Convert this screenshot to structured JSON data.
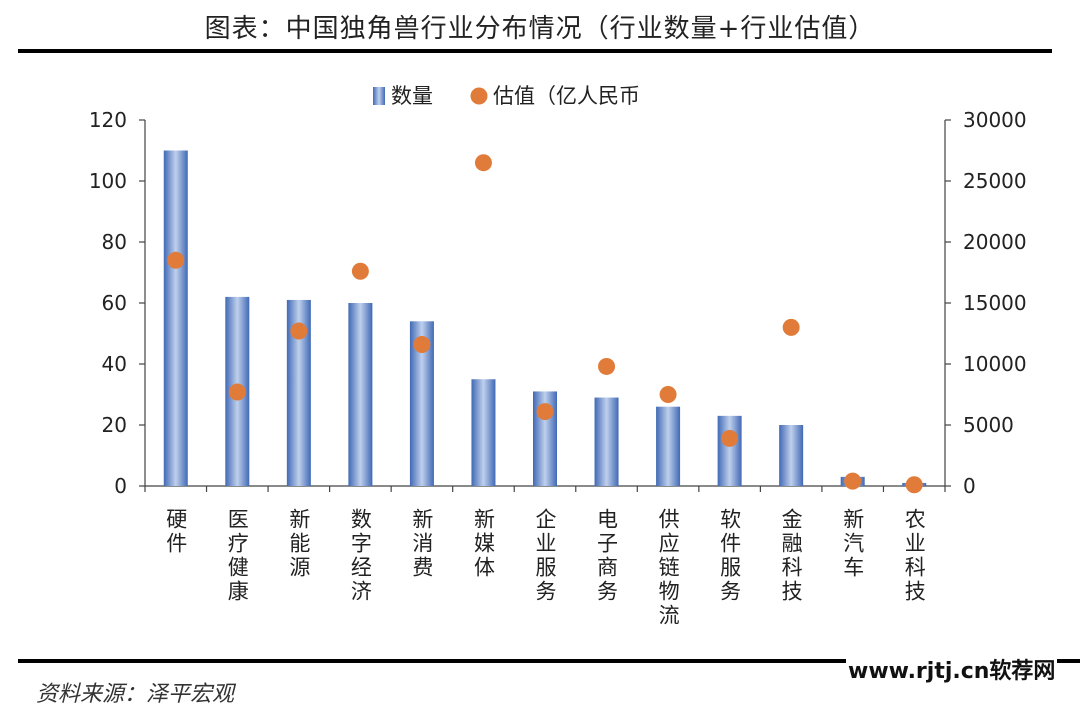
{
  "header": {
    "title": "图表：中国独角兽行业分布情况（行业数量+行业估值）"
  },
  "footer": {
    "source": "资料来源：泽平宏观",
    "watermark": "www.rjtj.cn软荐网"
  },
  "chart_data": {
    "type": "bar",
    "categories": [
      "硬件",
      "医疗健康",
      "新能源",
      "数字经济",
      "新消费",
      "新媒体",
      "企业服务",
      "电子商务",
      "供应链物流",
      "软件服务",
      "金融科技",
      "新汽车",
      "农业科技"
    ],
    "series": [
      {
        "name": "数量",
        "type": "bar",
        "axis": "left",
        "color": "#5B7FC4",
        "values": [
          110,
          62,
          61,
          60,
          54,
          35,
          31,
          29,
          26,
          23,
          20,
          3,
          1
        ]
      },
      {
        "name": "估值（亿人民币",
        "type": "scatter",
        "axis": "right",
        "color": "#E07B39",
        "values": [
          18500,
          7700,
          12700,
          17600,
          11600,
          26500,
          6100,
          9800,
          7500,
          3900,
          13000,
          400,
          100
        ]
      }
    ],
    "y_left": {
      "ylim": [
        0,
        120
      ],
      "ticks": [
        "0",
        "20",
        "40",
        "60",
        "80",
        "100",
        "120"
      ]
    },
    "y_right": {
      "ylim": [
        0,
        30000
      ],
      "ticks": [
        "0",
        "5000",
        "10000",
        "15000",
        "20000",
        "25000",
        "30000"
      ]
    },
    "grid": false,
    "legend_position": "top-center"
  }
}
